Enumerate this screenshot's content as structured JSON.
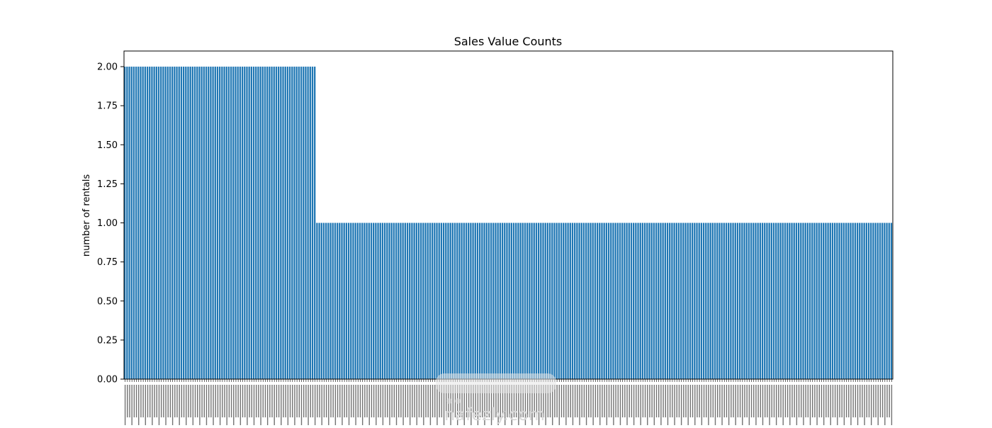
{
  "chart_data": {
    "type": "bar",
    "title": "Sales Value Counts",
    "xlabel": "",
    "ylabel": "number of rentals",
    "ylim": [
      0,
      2.1
    ],
    "yticks": [
      "0.00",
      "0.25",
      "0.50",
      "0.75",
      "1.00",
      "1.25",
      "1.50",
      "1.75",
      "2.00"
    ],
    "grid": false,
    "legend": "none",
    "bar_color": "#1f77b4",
    "bar_edge_color": "#ffffff",
    "series": [
      {
        "bar_count": 340,
        "values_by_group": [
          {
            "value": 2,
            "count": 85
          },
          {
            "value": 1,
            "count": 255
          }
        ]
      }
    ]
  },
  "watermark": {
    "site": "nafezly.com"
  }
}
